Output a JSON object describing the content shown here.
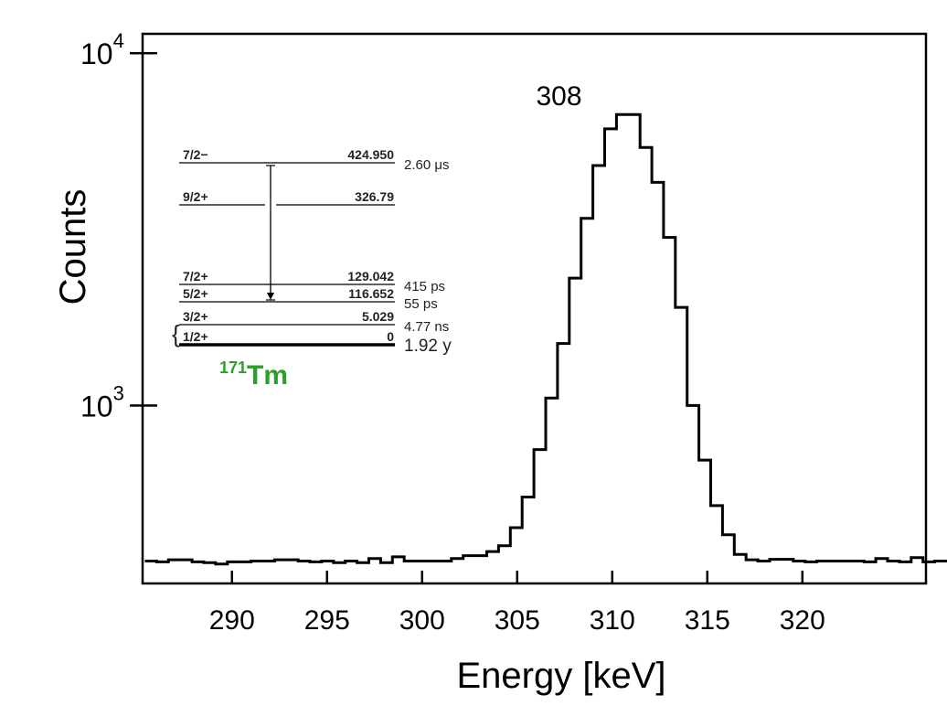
{
  "chart_data": {
    "type": "line",
    "style": "step-histogram",
    "xlabel": "Energy [keV]",
    "ylabel": "Counts",
    "xlim": [
      285.3,
      326.5
    ],
    "ylog": true,
    "ylim_exponents": [
      2.495,
      4.055
    ],
    "x_ticks": [
      290,
      295,
      300,
      305,
      310,
      315,
      320
    ],
    "y_ticks": [
      {
        "base": "10",
        "exp": "3",
        "value": 1000
      },
      {
        "base": "10",
        "exp": "4",
        "value": 10000
      }
    ],
    "peak_label": "308",
    "peak_x": 307.2,
    "grid": false,
    "bin_width": 0.62,
    "bin_start": 285.42,
    "series": [
      {
        "values": [
          362,
          360,
          365,
          365,
          360,
          358,
          355,
          360,
          360,
          362,
          362,
          365,
          365,
          362,
          360,
          362,
          358,
          362,
          358,
          368,
          358,
          372,
          362,
          362,
          362,
          362,
          368,
          375,
          375,
          385,
          400,
          450,
          550,
          750,
          1050,
          1500,
          2300,
          3400,
          4800,
          6100,
          6700,
          6700,
          5400,
          4300,
          3000,
          1900,
          1000,
          700,
          520,
          430,
          378,
          365,
          362,
          366,
          366,
          362,
          360,
          362,
          362,
          362,
          362,
          360,
          368,
          362,
          360,
          370,
          360,
          362,
          362,
          362,
          360,
          362,
          362,
          366,
          366,
          362,
          360,
          362,
          362,
          362,
          362,
          362,
          360,
          362,
          360,
          362,
          356,
          356
        ]
      }
    ]
  },
  "inset": {
    "levels": [
      {
        "spin": "7/2−",
        "energy": "424.950",
        "halflife": "2.60 μs"
      },
      {
        "spin": "9/2+",
        "energy": "326.79",
        "halflife": ""
      },
      {
        "spin": "7/2+",
        "energy": "129.042",
        "halflife": "415 ps"
      },
      {
        "spin": "5/2+",
        "energy": "116.652",
        "halflife": "55 ps"
      },
      {
        "spin": "3/2+",
        "energy": "5.029",
        "halflife": "4.77 ns"
      },
      {
        "spin": "1/2+",
        "energy": "0",
        "halflife": "1.92 y"
      }
    ],
    "nucleus_mass": "171",
    "nucleus_symbol": "Tm",
    "nucleus_color": "#2aa02a"
  }
}
